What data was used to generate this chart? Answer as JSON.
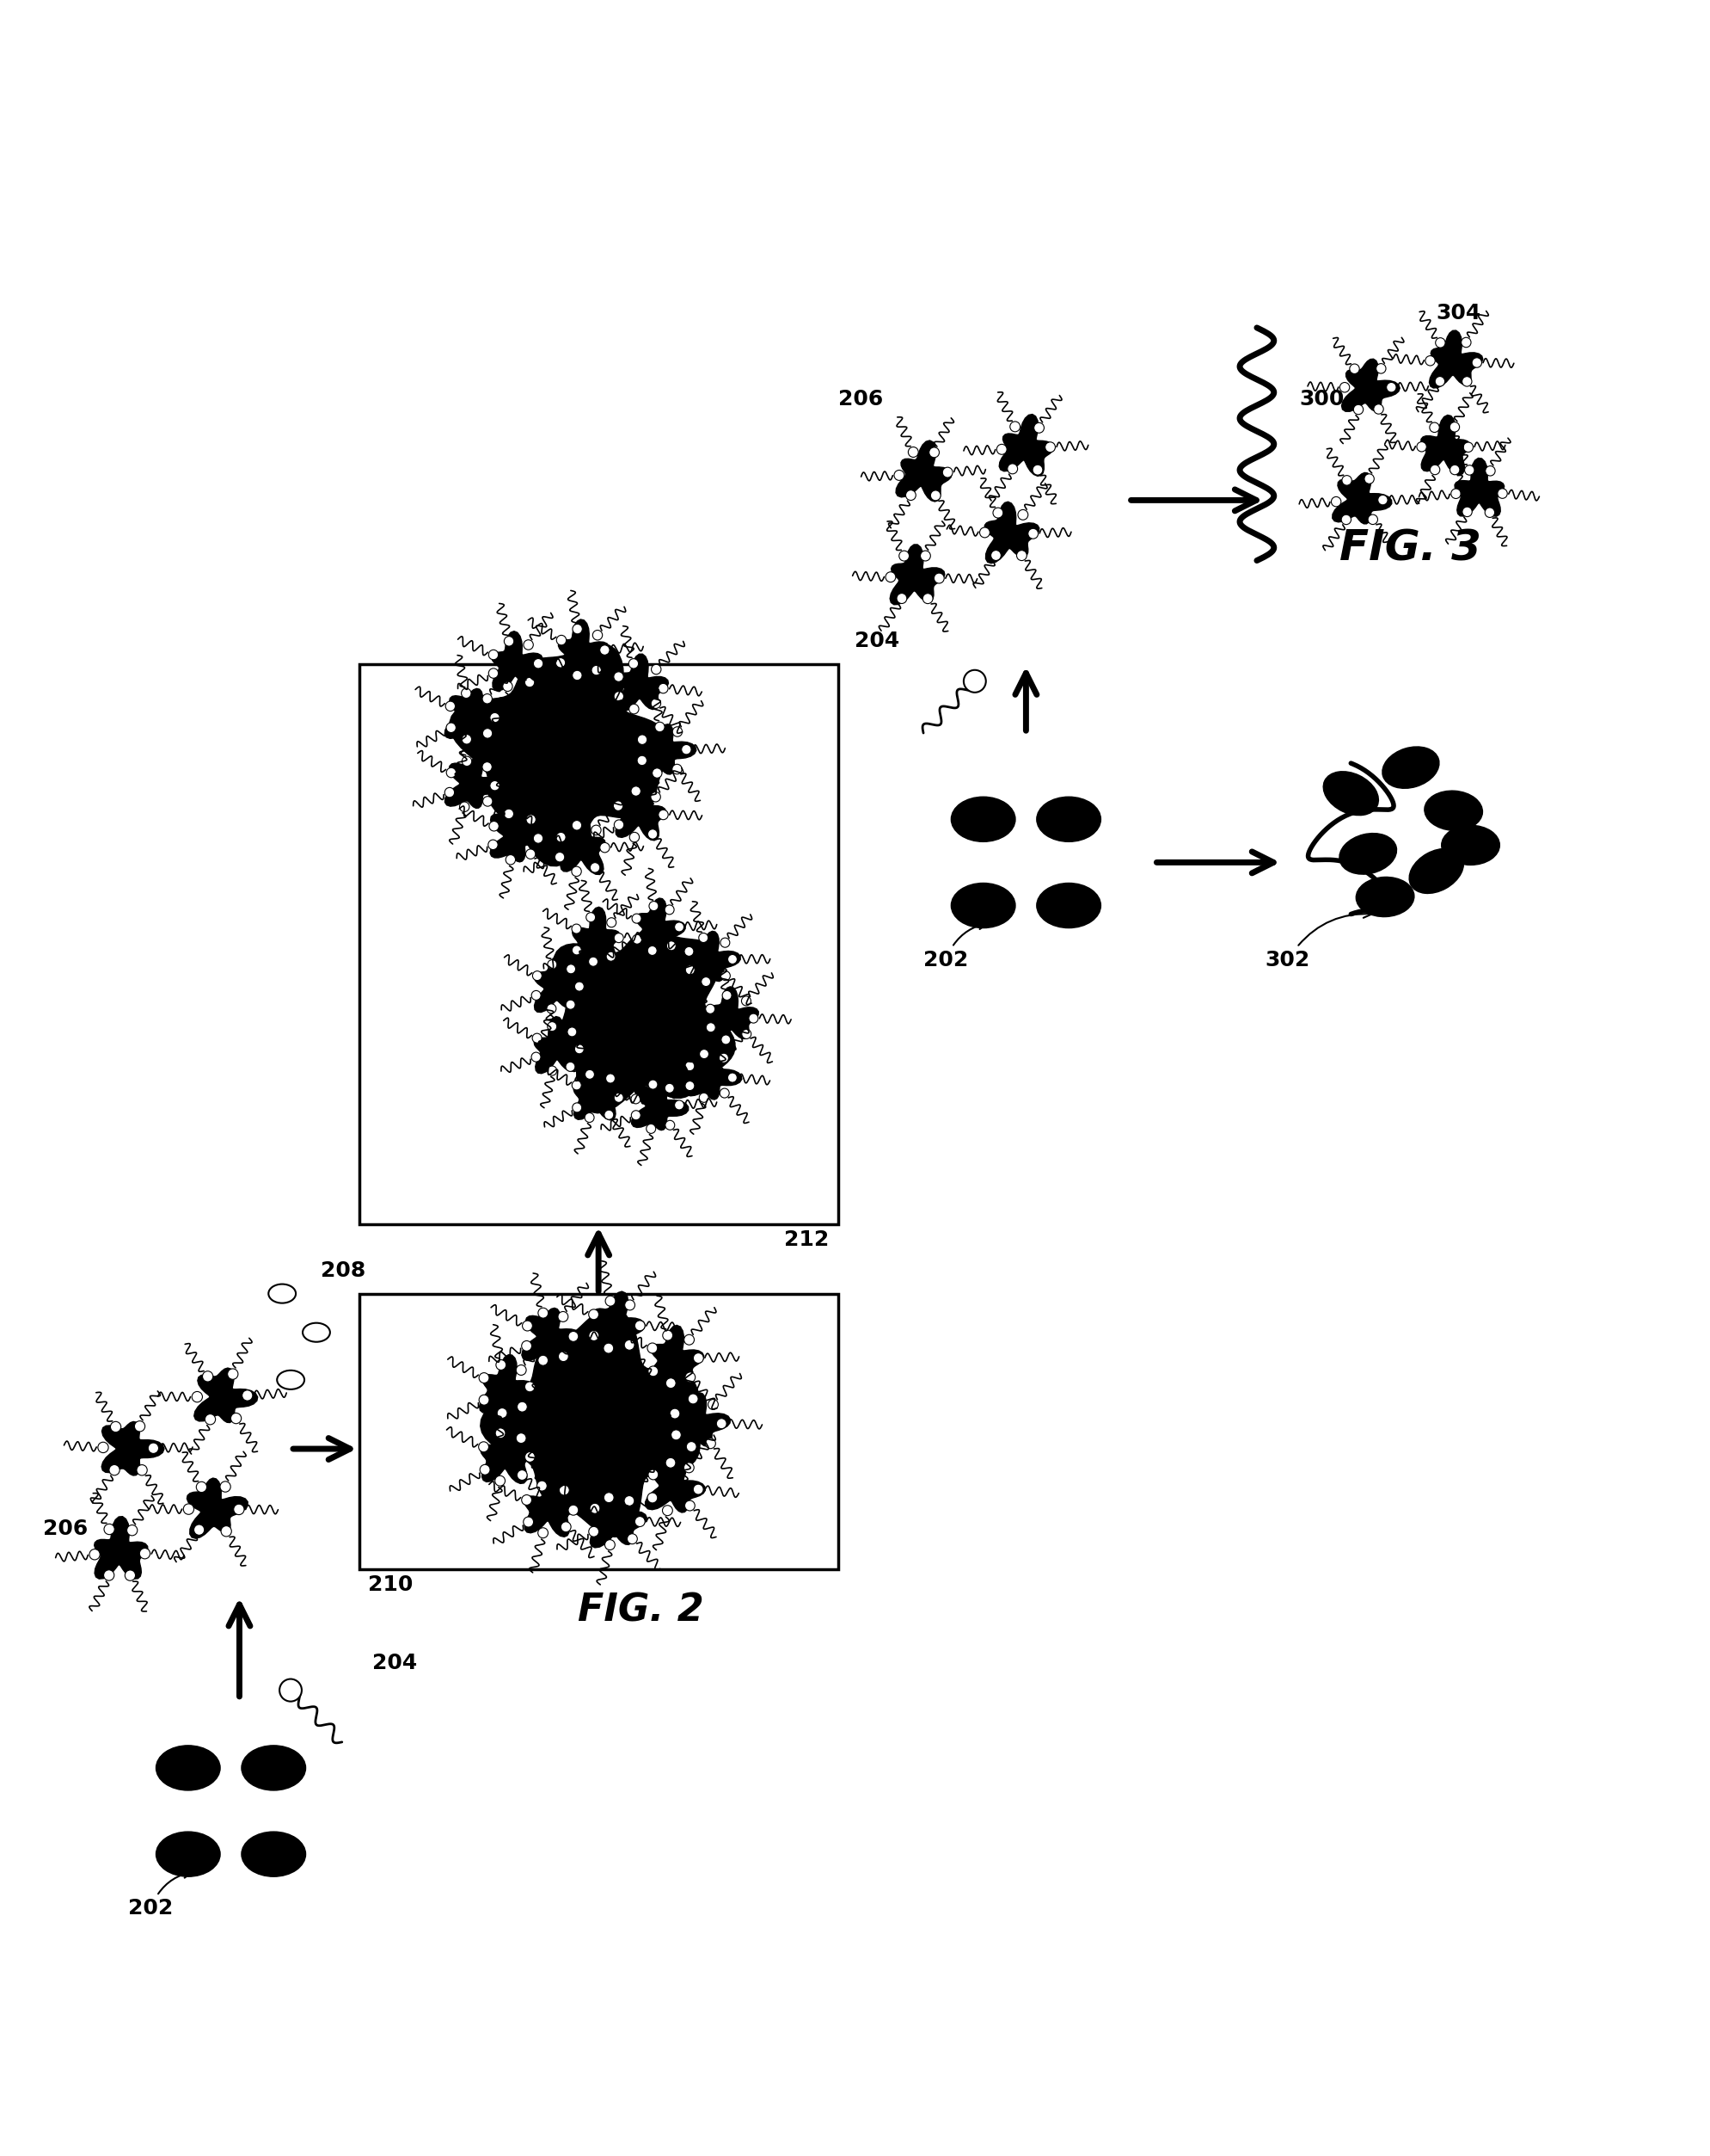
{
  "fig_width": 19.89,
  "fig_height": 25.06,
  "bg_color": "#ffffff",
  "labels": {
    "202": "202",
    "204": "204",
    "206": "206",
    "208": "208",
    "210": "210",
    "212": "212",
    "fig2": "FIG. 2",
    "fig3": "FIG. 3",
    "300": "300",
    "302": "302",
    "304": "304",
    "202b": "202",
    "204b": "204",
    "206b": "206"
  }
}
